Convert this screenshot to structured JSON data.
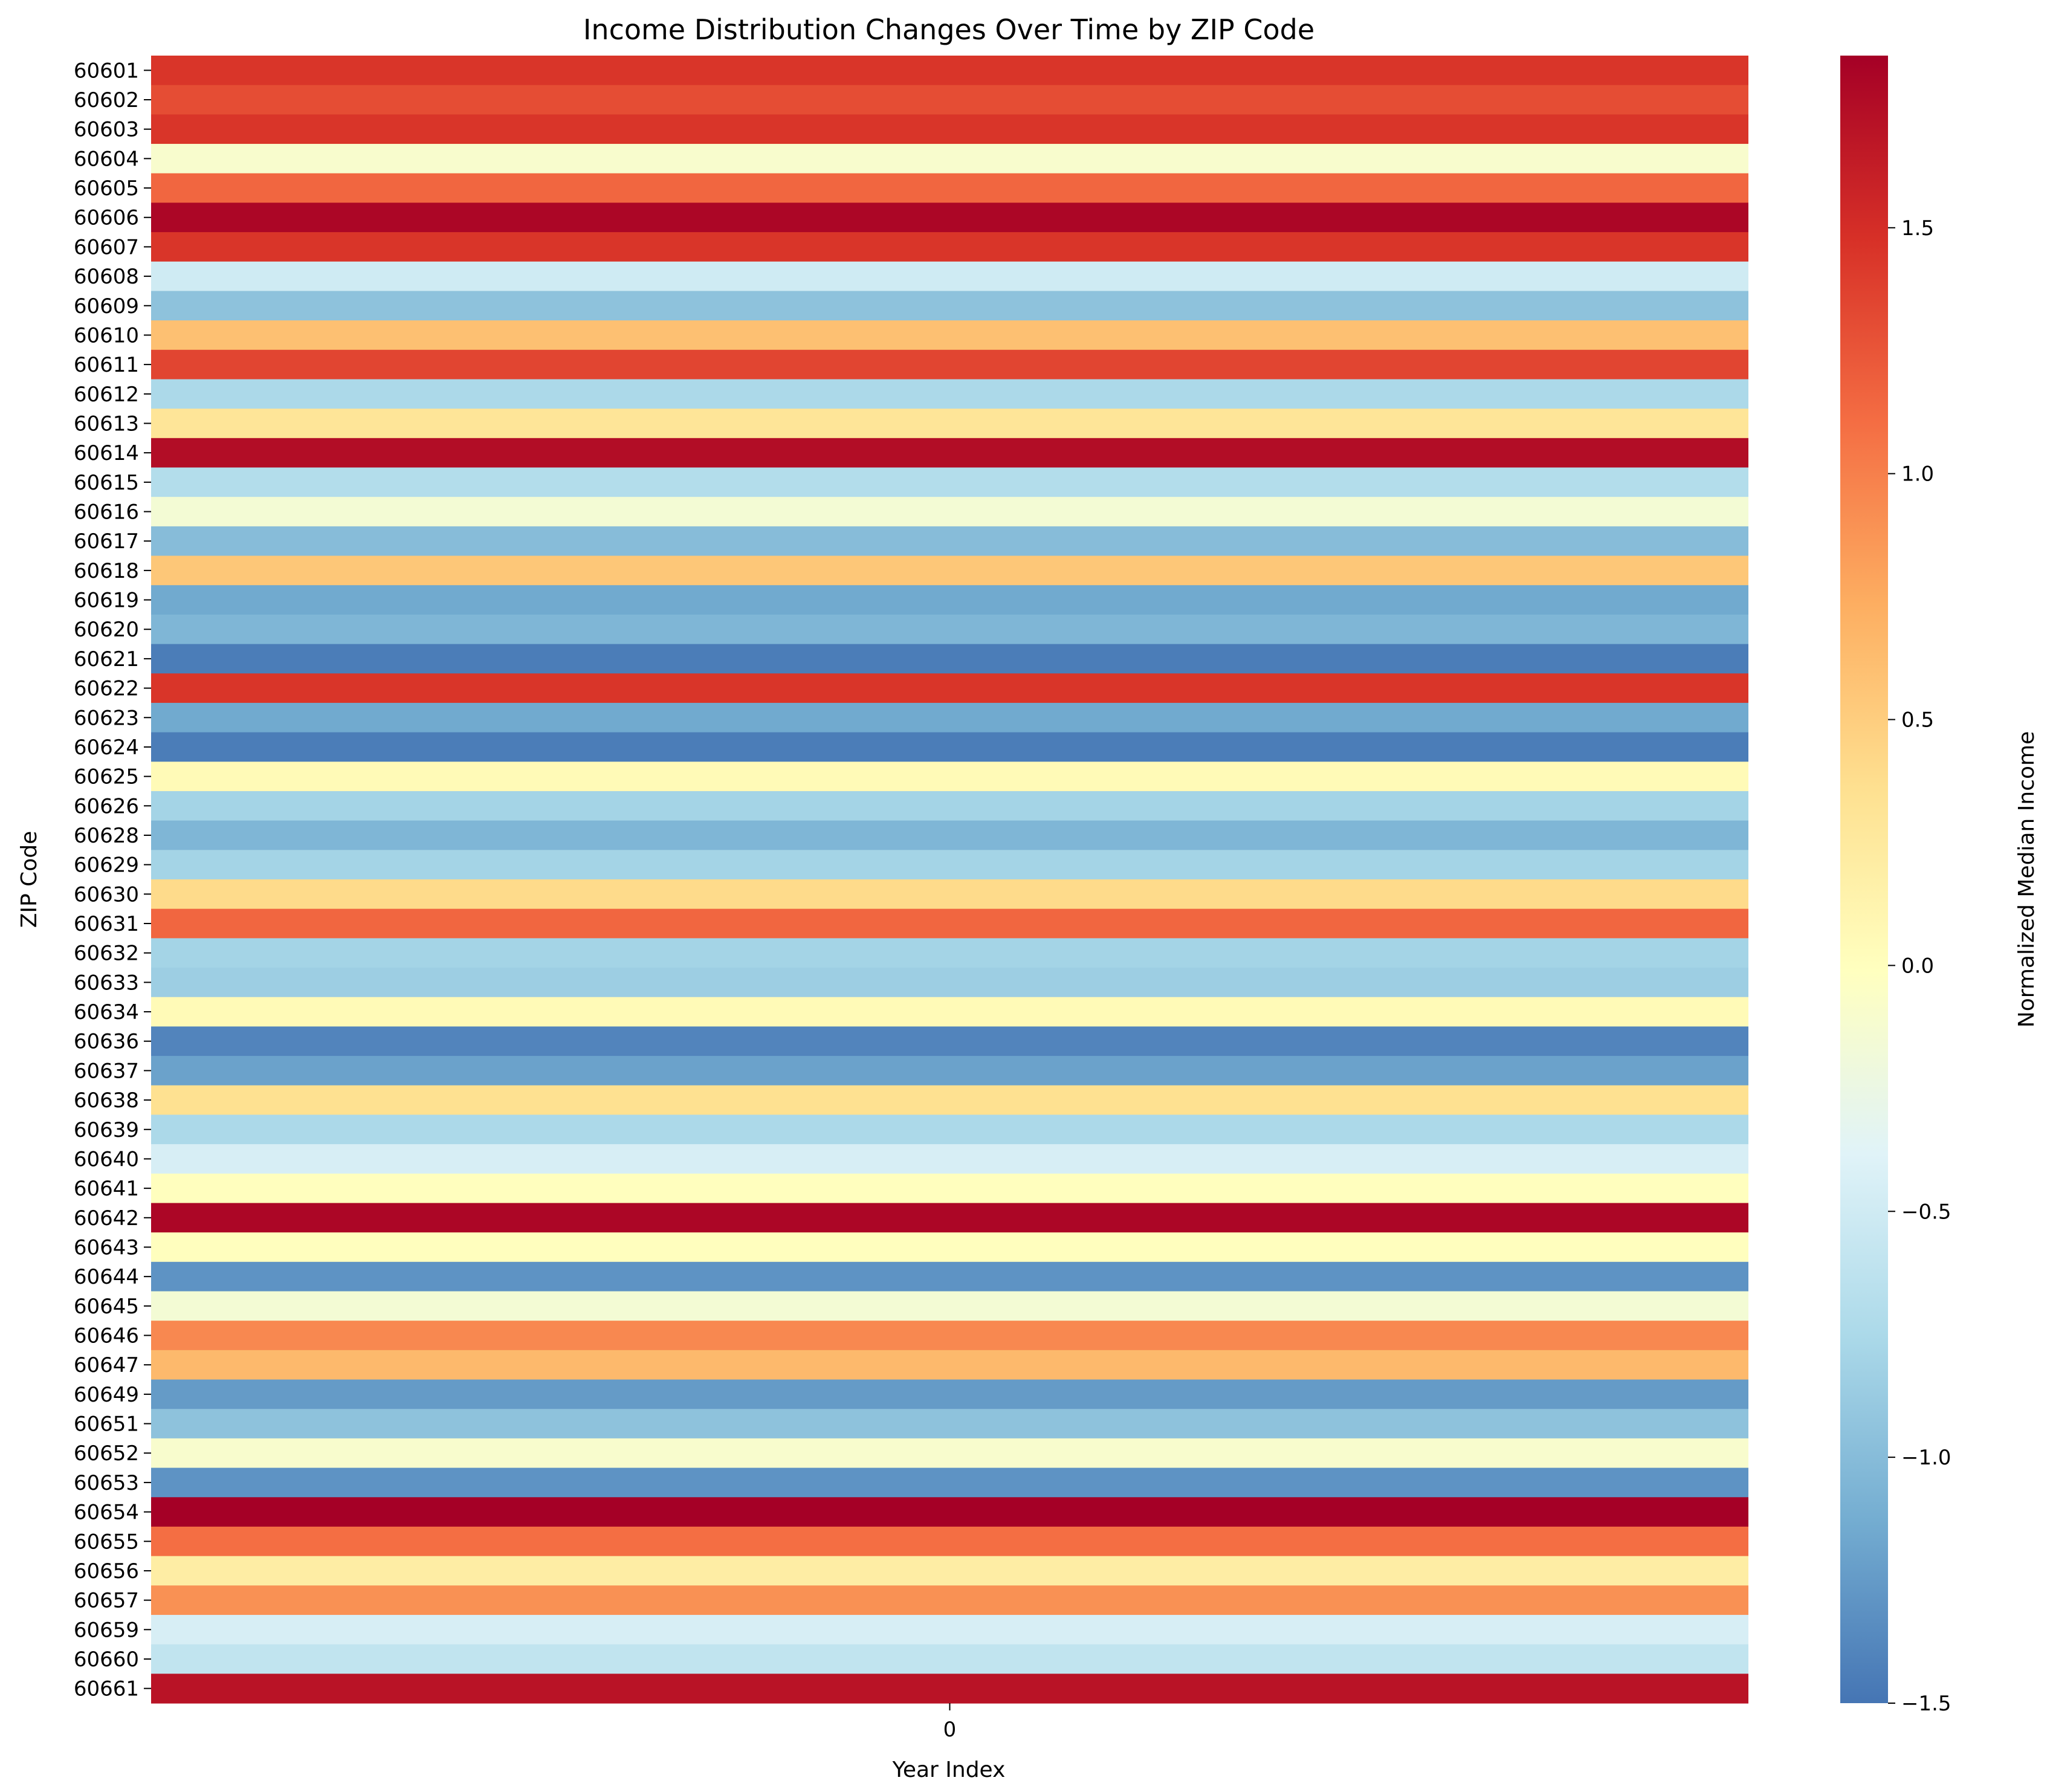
{
  "chart_data": {
    "type": "heatmap",
    "title": "Income Distribution Changes Over Time by ZIP Code",
    "xlabel": "Year Index",
    "ylabel": "ZIP Code",
    "x_categories": [
      "0"
    ],
    "y_categories": [
      "60601",
      "60602",
      "60603",
      "60604",
      "60605",
      "60606",
      "60607",
      "60608",
      "60609",
      "60610",
      "60611",
      "60612",
      "60613",
      "60614",
      "60615",
      "60616",
      "60617",
      "60618",
      "60619",
      "60620",
      "60621",
      "60622",
      "60623",
      "60624",
      "60625",
      "60626",
      "60628",
      "60629",
      "60630",
      "60631",
      "60632",
      "60633",
      "60634",
      "60636",
      "60637",
      "60638",
      "60639",
      "60640",
      "60641",
      "60642",
      "60643",
      "60644",
      "60645",
      "60646",
      "60647",
      "60649",
      "60651",
      "60652",
      "60653",
      "60654",
      "60655",
      "60656",
      "60657",
      "60659",
      "60660",
      "60661"
    ],
    "values": [
      1.45,
      1.3,
      1.45,
      -0.1,
      1.15,
      1.8,
      1.45,
      -0.5,
      -0.95,
      0.6,
      1.35,
      -0.75,
      0.3,
      1.75,
      -0.7,
      -0.15,
      -1.0,
      0.55,
      -1.15,
      -1.05,
      -1.45,
      1.45,
      -1.15,
      -1.45,
      0.05,
      -0.8,
      -1.05,
      -0.8,
      0.4,
      1.15,
      -0.8,
      -0.85,
      0.05,
      -1.4,
      -1.2,
      0.35,
      -0.75,
      -0.45,
      0.0,
      1.8,
      0.0,
      -1.3,
      -0.15,
      0.95,
      0.65,
      -1.25,
      -0.95,
      -0.1,
      -1.3,
      1.85,
      1.1,
      0.2,
      0.9,
      -0.45,
      -0.6,
      1.7
    ],
    "colorbar": {
      "label": "Normalized Median Income",
      "vmin": -1.5,
      "vmax": 1.85,
      "ticks": [
        -1.5,
        -1.0,
        -0.5,
        0.0,
        0.5,
        1.0,
        1.5
      ],
      "tick_labels": [
        "−1.5",
        "−1.0",
        "−0.5",
        "0.0",
        "0.5",
        "1.0",
        "1.5"
      ],
      "colormap": [
        "#4575b4",
        "#74add1",
        "#abd9e9",
        "#e0f3f8",
        "#ffffbf",
        "#fee090",
        "#fdae61",
        "#f46d43",
        "#d73027",
        "#a50026"
      ]
    },
    "grid": false
  }
}
